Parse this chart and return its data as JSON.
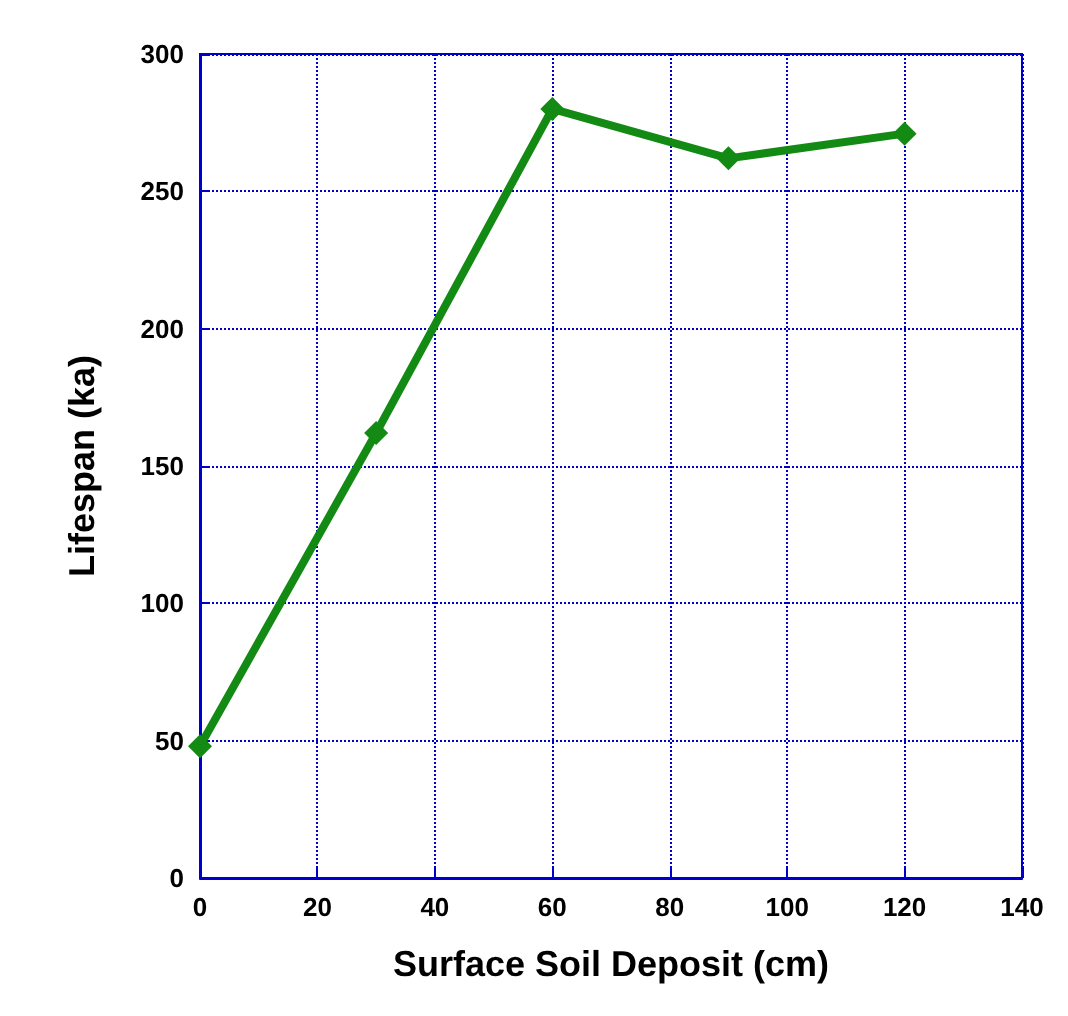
{
  "chart_data": {
    "type": "line",
    "xlabel": "Surface Soil Deposit (cm)",
    "ylabel": "Lifespan (ka)",
    "x": [
      0,
      30,
      60,
      90,
      120
    ],
    "series": [
      {
        "color": "#138a13",
        "values": [
          48,
          162,
          280,
          262,
          271
        ]
      }
    ],
    "xlim": [
      0,
      140
    ],
    "xticks": [
      0,
      20,
      40,
      60,
      80,
      100,
      120,
      140
    ],
    "ylim": [
      0,
      300
    ],
    "yticks": [
      0,
      50,
      100,
      150,
      200,
      250,
      300
    ],
    "grid": true,
    "marker": "diamond",
    "line_style": "solid"
  }
}
